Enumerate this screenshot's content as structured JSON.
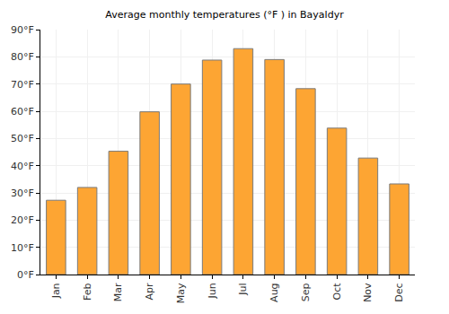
{
  "chart_data": {
    "type": "bar",
    "title": "Average monthly temperatures (°F ) in Bayaldyr",
    "categories": [
      "Jan",
      "Feb",
      "Mar",
      "Apr",
      "May",
      "Jun",
      "Jul",
      "Aug",
      "Sep",
      "Oct",
      "Nov",
      "Dec"
    ],
    "values": [
      27.3,
      32,
      45.3,
      59.8,
      70,
      78.8,
      83,
      79,
      68.3,
      53.8,
      42.8,
      33.3
    ],
    "color": "#fda533",
    "ylim": [
      0,
      90
    ],
    "yticks": [
      {
        "value": 0,
        "label": "0°F"
      },
      {
        "value": 10,
        "label": "10°F"
      },
      {
        "value": 20,
        "label": "20°F"
      },
      {
        "value": 30,
        "label": "30°F"
      },
      {
        "value": 40,
        "label": "40°F"
      },
      {
        "value": 50,
        "label": "50°F"
      },
      {
        "value": 60,
        "label": "60°F"
      },
      {
        "value": 70,
        "label": "70°F"
      },
      {
        "value": 80,
        "label": "80°F"
      },
      {
        "value": 90,
        "label": "90°F"
      }
    ],
    "grid": true
  }
}
